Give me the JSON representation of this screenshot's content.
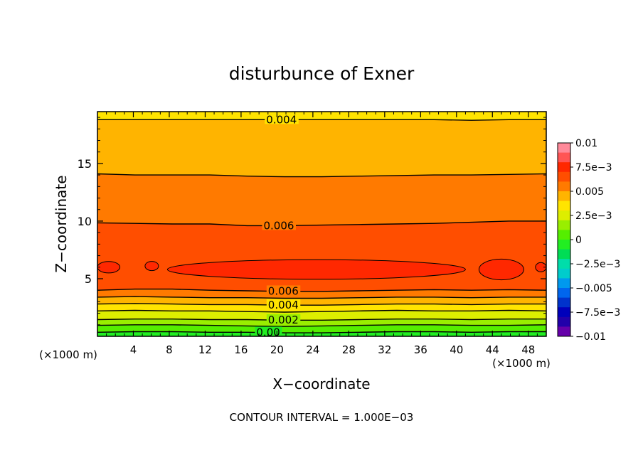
{
  "chart_data": {
    "type": "contour",
    "title": "disturbunce of Exner",
    "xlabel": "X−coordinate",
    "ylabel": "Z−coordinate",
    "x_unit_left": "(×1000 m)",
    "x_unit_right": "(×1000 m)",
    "footer": "CONTOUR INTERVAL = 1.000E−03",
    "xlim": [
      0,
      50
    ],
    "ylim": [
      0,
      19.5
    ],
    "xticks": [
      4,
      8,
      12,
      16,
      20,
      24,
      28,
      32,
      36,
      40,
      44,
      48
    ],
    "yticks": [
      5,
      10,
      15
    ],
    "contour_interval": 0.001,
    "contour_lines": [
      {
        "level": 0.0,
        "label": "0.00",
        "label_x": 17.7,
        "z": [
          0.35,
          0.4,
          0.4,
          0.35,
          0.35,
          0.3,
          0.3,
          0.35,
          0.4,
          0.4,
          0.35,
          0.4,
          0.4
        ]
      },
      {
        "level": 0.001,
        "label": "",
        "label_x": null,
        "z": [
          0.95,
          1.0,
          1.0,
          0.95,
          0.9,
          0.85,
          0.9,
          0.95,
          1.0,
          1.0,
          0.95,
          0.95,
          1.0
        ]
      },
      {
        "level": 0.002,
        "label": "0.002",
        "label_x": 19.0,
        "z": [
          1.45,
          1.5,
          1.5,
          1.45,
          1.45,
          1.4,
          1.4,
          1.45,
          1.5,
          1.5,
          1.45,
          1.5,
          1.5
        ]
      },
      {
        "level": 0.003,
        "label": "",
        "label_x": null,
        "z": [
          2.2,
          2.25,
          2.2,
          2.2,
          2.15,
          2.1,
          2.15,
          2.2,
          2.25,
          2.2,
          2.2,
          2.25,
          2.2
        ]
      },
      {
        "level": 0.004,
        "label": "0.004",
        "label_x": 19.0,
        "z": [
          2.8,
          2.85,
          2.8,
          2.75,
          2.75,
          2.7,
          2.7,
          2.75,
          2.8,
          2.8,
          2.75,
          2.8,
          2.8
        ]
      },
      {
        "level": 0.005,
        "label": "",
        "label_x": null,
        "z": [
          3.4,
          3.45,
          3.4,
          3.35,
          3.35,
          3.3,
          3.3,
          3.35,
          3.4,
          3.4,
          3.35,
          3.4,
          3.4
        ]
      },
      {
        "level": 0.006,
        "label": "0.006",
        "label_x": 19.0,
        "z": [
          4.0,
          4.1,
          4.1,
          4.0,
          3.95,
          3.9,
          3.9,
          3.95,
          4.0,
          4.05,
          4.0,
          4.05,
          4.0
        ]
      },
      {
        "level": 0.006,
        "label": "0.006",
        "label_x": 18.5,
        "z": [
          9.85,
          9.8,
          9.75,
          9.75,
          9.6,
          9.6,
          9.65,
          9.7,
          9.75,
          9.8,
          9.9,
          10.0,
          10.0
        ]
      },
      {
        "level": 0.005,
        "label": "",
        "label_x": null,
        "z": [
          14.1,
          14.0,
          14.0,
          14.0,
          13.9,
          13.85,
          13.85,
          13.9,
          13.95,
          14.0,
          14.0,
          14.05,
          14.1
        ]
      },
      {
        "level": 0.004,
        "label": "0.004",
        "label_x": 18.8,
        "z": [
          18.8,
          18.8,
          18.8,
          18.8,
          18.8,
          18.8,
          18.8,
          18.8,
          18.8,
          18.8,
          18.75,
          18.8,
          18.8
        ]
      }
    ],
    "filled_bands": [
      {
        "from": -0.0005,
        "to": 0.0005,
        "color": "#22ee22"
      },
      {
        "from": 0.0005,
        "to": 0.0015,
        "color": "#55ee00"
      },
      {
        "from": 0.0015,
        "to": 0.0025,
        "color": "#99ee00"
      },
      {
        "from": 0.0025,
        "to": 0.0035,
        "color": "#ddee00"
      },
      {
        "from": 0.0035,
        "to": 0.0045,
        "color": "#ffe400"
      },
      {
        "from": 0.0045,
        "to": 0.0055,
        "color": "#ffb400"
      },
      {
        "from": 0.0055,
        "to": 0.0065,
        "color": "#ff7a00"
      },
      {
        "from": 0.0065,
        "to": 0.0075,
        "color": "#ff4e00"
      },
      {
        "from": 0.0075,
        "to": 0.0085,
        "color": "#ff2800"
      }
    ],
    "max_regions": [
      {
        "x_start": 0,
        "x_end": 2.5,
        "z_center": 6.0,
        "height": 1.0
      },
      {
        "x_start": 5.3,
        "x_end": 6.8,
        "z_center": 6.1,
        "height": 0.8
      },
      {
        "x_start": 7.8,
        "x_end": 41.0,
        "z_center": 5.8,
        "height": 1.7
      },
      {
        "x_start": 42.5,
        "x_end": 47.5,
        "z_center": 5.8,
        "height": 1.8
      },
      {
        "x_start": 48.8,
        "x_end": 50,
        "z_center": 6.0,
        "height": 0.8
      }
    ],
    "colorbar": {
      "ticks": [
        "0.01",
        "7.5e−3",
        "0.005",
        "2.5e−3",
        "0",
        "−2.5e−3",
        "−0.005",
        "−7.5e−3",
        "−0.01"
      ],
      "colors": [
        "#ff8a9a",
        "#ff5555",
        "#ff2800",
        "#ff4e00",
        "#ff7a00",
        "#ffb400",
        "#ffe400",
        "#ddee00",
        "#99ee00",
        "#55ee00",
        "#22ee22",
        "#00dd55",
        "#00ddaa",
        "#00cccc",
        "#0099ee",
        "#0066ee",
        "#0033cc",
        "#0000bb",
        "#2200aa",
        "#6600aa"
      ]
    }
  }
}
